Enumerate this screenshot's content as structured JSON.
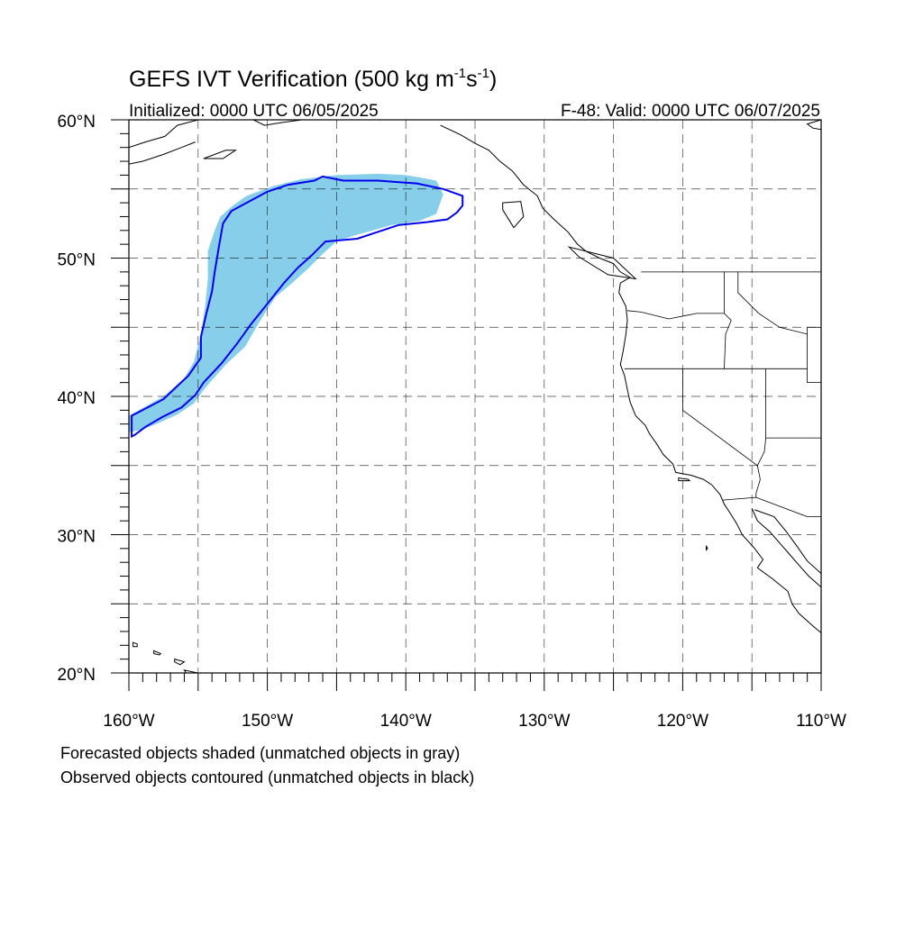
{
  "figure": {
    "title_main": "GEFS IVT Verification (500 kg m",
    "title_exp1": "-1",
    "title_mid": "s",
    "title_exp2": "-1",
    "title_end": ")",
    "subtitle_left": "Initialized: 0000 UTC 06/05/2025",
    "subtitle_right": "F-48: Valid: 0000 UTC 06/07/2025",
    "caption_line1": "Forecasted objects shaded (unmatched objects in gray)",
    "caption_line2": "Observed objects contoured (unmatched objects in black)"
  },
  "axes": {
    "lon_range": [
      -160,
      -110
    ],
    "lat_range": [
      20,
      60
    ],
    "lon_ticks": [
      {
        "value": -160,
        "label": "160°W"
      },
      {
        "value": -150,
        "label": "150°W"
      },
      {
        "value": -140,
        "label": "140°W"
      },
      {
        "value": -130,
        "label": "130°W"
      },
      {
        "value": -120,
        "label": "120°W"
      },
      {
        "value": -110,
        "label": "110°W"
      }
    ],
    "lat_ticks": [
      {
        "value": 60,
        "label": "60°N"
      },
      {
        "value": 50,
        "label": "50°N"
      },
      {
        "value": 40,
        "label": "40°N"
      },
      {
        "value": 30,
        "label": "30°N"
      },
      {
        "value": 20,
        "label": "20°N"
      }
    ],
    "grid_lons": [
      -155,
      -150,
      -145,
      -140,
      -135,
      -130,
      -125,
      -120,
      -115
    ],
    "grid_lats": [
      25,
      30,
      35,
      40,
      45,
      50,
      55
    ],
    "grid": "dashed"
  },
  "colors": {
    "forecast_fill": "#87ceeb",
    "observed_contour": "#0000ee",
    "coastline": "#000000"
  },
  "forecast_object": {
    "label": "forecast-ivt-object",
    "polygon": [
      [
        -160,
        37.4
      ],
      [
        -160,
        38.6
      ],
      [
        -157.5,
        40.0
      ],
      [
        -156.0,
        41.3
      ],
      [
        -155.3,
        42.5
      ],
      [
        -154.8,
        44.5
      ],
      [
        -154.5,
        46.5
      ],
      [
        -154.3,
        48.5
      ],
      [
        -154.3,
        50.5
      ],
      [
        -153.8,
        52.0
      ],
      [
        -153.4,
        53.0
      ],
      [
        -152.5,
        53.8
      ],
      [
        -151.5,
        54.5
      ],
      [
        -149.6,
        55.2
      ],
      [
        -147.6,
        55.7
      ],
      [
        -145.0,
        56.0
      ],
      [
        -142.0,
        56.1
      ],
      [
        -140.0,
        56.0
      ],
      [
        -138.8,
        55.8
      ],
      [
        -137.8,
        55.6
      ],
      [
        -137.3,
        54.6
      ],
      [
        -137.8,
        53.2
      ],
      [
        -139.0,
        52.7
      ],
      [
        -141.0,
        52.4
      ],
      [
        -143.8,
        51.6
      ],
      [
        -145.0,
        51.2
      ],
      [
        -146.0,
        50.3
      ],
      [
        -147.0,
        49.3
      ],
      [
        -148.2,
        48.2
      ],
      [
        -149.4,
        47.2
      ],
      [
        -150.0,
        46.3
      ],
      [
        -150.8,
        45.0
      ],
      [
        -151.6,
        43.6
      ],
      [
        -153.0,
        42.3
      ],
      [
        -154.5,
        40.6
      ],
      [
        -155.3,
        39.5
      ],
      [
        -156.5,
        38.7
      ],
      [
        -157.8,
        38.1
      ],
      [
        -159.0,
        37.6
      ]
    ]
  },
  "observed_object": {
    "label": "observed-ivt-contour",
    "polygon": [
      [
        -159.8,
        37.1
      ],
      [
        -159.8,
        38.6
      ],
      [
        -157.5,
        39.8
      ],
      [
        -155.7,
        41.5
      ],
      [
        -154.8,
        42.8
      ],
      [
        -154.8,
        44.3
      ],
      [
        -154.4,
        46.0
      ],
      [
        -154.0,
        47.6
      ],
      [
        -153.8,
        49.0
      ],
      [
        -153.5,
        50.8
      ],
      [
        -153.2,
        52.5
      ],
      [
        -152.6,
        53.4
      ],
      [
        -151.5,
        54.0
      ],
      [
        -150.0,
        54.8
      ],
      [
        -148.5,
        55.3
      ],
      [
        -146.6,
        55.6
      ],
      [
        -146.0,
        55.9
      ],
      [
        -144.5,
        55.6
      ],
      [
        -142.0,
        55.6
      ],
      [
        -140.6,
        55.5
      ],
      [
        -139.2,
        55.4
      ],
      [
        -137.3,
        55.0
      ],
      [
        -135.9,
        54.5
      ],
      [
        -135.9,
        53.8
      ],
      [
        -136.3,
        53.3
      ],
      [
        -137.0,
        52.8
      ],
      [
        -138.5,
        52.6
      ],
      [
        -140.5,
        52.4
      ],
      [
        -142.0,
        51.9
      ],
      [
        -143.5,
        51.4
      ],
      [
        -145.8,
        51.2
      ],
      [
        -146.8,
        50.2
      ],
      [
        -147.8,
        49.3
      ],
      [
        -148.8,
        48.2
      ],
      [
        -150.0,
        46.7
      ],
      [
        -151.2,
        45.2
      ],
      [
        -152.2,
        43.8
      ],
      [
        -153.3,
        42.4
      ],
      [
        -154.6,
        41.0
      ],
      [
        -155.2,
        40.1
      ],
      [
        -156.2,
        39.2
      ],
      [
        -157.6,
        38.5
      ],
      [
        -158.8,
        37.8
      ],
      [
        -159.6,
        37.2
      ]
    ]
  },
  "coastlines": [
    {
      "name": "west-coast-north-america",
      "points": [
        [
          -137.5,
          59.6
        ],
        [
          -136.0,
          58.9
        ],
        [
          -135.0,
          58.3
        ],
        [
          -134.0,
          57.8
        ],
        [
          -133.2,
          57.0
        ],
        [
          -132.3,
          56.3
        ],
        [
          -131.5,
          55.3
        ],
        [
          -130.5,
          54.5
        ],
        [
          -130.1,
          53.6
        ],
        [
          -129.3,
          52.8
        ],
        [
          -128.3,
          51.9
        ],
        [
          -127.6,
          51.0
        ],
        [
          -127.0,
          50.5
        ],
        [
          -126.0,
          50.0
        ],
        [
          -125.0,
          49.6
        ],
        [
          -124.5,
          49.0
        ],
        [
          -123.8,
          48.6
        ],
        [
          -124.5,
          48.2
        ],
        [
          -124.6,
          47.5
        ],
        [
          -124.1,
          46.5
        ],
        [
          -124.0,
          45.5
        ],
        [
          -124.1,
          44.5
        ],
        [
          -124.3,
          43.3
        ],
        [
          -124.5,
          42.3
        ],
        [
          -124.2,
          41.5
        ],
        [
          -124.0,
          40.5
        ],
        [
          -123.8,
          39.6
        ],
        [
          -123.4,
          38.6
        ],
        [
          -122.7,
          37.9
        ],
        [
          -122.4,
          37.3
        ],
        [
          -121.9,
          36.6
        ],
        [
          -121.4,
          35.8
        ],
        [
          -120.7,
          35.1
        ],
        [
          -120.5,
          34.5
        ],
        [
          -119.4,
          34.3
        ],
        [
          -118.5,
          34.0
        ],
        [
          -117.9,
          33.6
        ],
        [
          -117.3,
          32.9
        ],
        [
          -117.0,
          32.2
        ],
        [
          -116.6,
          31.6
        ],
        [
          -116.1,
          30.8
        ],
        [
          -115.7,
          30.0
        ],
        [
          -114.8,
          29.0
        ],
        [
          -114.2,
          28.2
        ],
        [
          -114.6,
          27.6
        ],
        [
          -113.5,
          26.8
        ],
        [
          -112.4,
          25.9
        ],
        [
          -112.1,
          25.0
        ],
        [
          -111.6,
          24.3
        ],
        [
          -110.6,
          23.4
        ],
        [
          -110.0,
          22.9
        ]
      ]
    },
    {
      "name": "gulf-of-california-coast",
      "points": [
        [
          -115.0,
          31.9
        ],
        [
          -114.6,
          31.0
        ],
        [
          -113.7,
          30.2
        ],
        [
          -113.0,
          29.4
        ],
        [
          -112.3,
          28.6
        ],
        [
          -111.6,
          27.8
        ],
        [
          -110.9,
          27.0
        ],
        [
          -110.0,
          26.2
        ]
      ]
    },
    {
      "name": "mainland-mexico-coast",
      "points": [
        [
          -114.8,
          31.8
        ],
        [
          -113.4,
          31.3
        ],
        [
          -112.5,
          30.2
        ],
        [
          -111.7,
          29.1
        ],
        [
          -111.0,
          28.1
        ],
        [
          -110.0,
          27.2
        ]
      ]
    },
    {
      "name": "alaska-coast",
      "points": [
        [
          -160.0,
          58.0
        ],
        [
          -158.8,
          58.4
        ],
        [
          -157.4,
          58.8
        ],
        [
          -156.5,
          59.6
        ],
        [
          -155.0,
          60.0
        ]
      ]
    },
    {
      "name": "alaska-peninsula",
      "points": [
        [
          -160.0,
          56.8
        ],
        [
          -159.0,
          57.0
        ],
        [
          -157.5,
          57.5
        ],
        [
          -156.2,
          58.0
        ],
        [
          -155.2,
          58.4
        ]
      ]
    },
    {
      "name": "gulf-of-alaska-coast",
      "points": [
        [
          -151.0,
          60.0
        ],
        [
          -150.2,
          59.6
        ],
        [
          -149.0,
          59.8
        ],
        [
          -147.5,
          60.0
        ]
      ]
    },
    {
      "name": "northeast-corner-coast",
      "points": [
        [
          -110.0,
          60.0
        ],
        [
          -111.0,
          59.7
        ],
        [
          -110.6,
          59.4
        ],
        [
          -110.0,
          59.3
        ]
      ]
    }
  ],
  "islands": [
    {
      "name": "kodiak-island",
      "points": [
        [
          -154.6,
          57.2
        ],
        [
          -153.0,
          57.8
        ],
        [
          -152.3,
          57.8
        ],
        [
          -153.2,
          57.2
        ],
        [
          -154.6,
          57.2
        ]
      ]
    },
    {
      "name": "haida-gwaii",
      "points": [
        [
          -133.0,
          54.0
        ],
        [
          -131.7,
          54.1
        ],
        [
          -131.5,
          53.0
        ],
        [
          -132.2,
          52.2
        ],
        [
          -133.0,
          53.5
        ],
        [
          -133.0,
          54.0
        ]
      ]
    },
    {
      "name": "vancouver-island",
      "points": [
        [
          -128.2,
          50.8
        ],
        [
          -125.0,
          50.0
        ],
        [
          -123.4,
          48.5
        ],
        [
          -125.4,
          48.8
        ],
        [
          -127.5,
          50.1
        ],
        [
          -128.2,
          50.8
        ]
      ]
    },
    {
      "name": "hawaii-kauai",
      "points": [
        [
          -159.7,
          22.2
        ],
        [
          -159.4,
          22.1
        ],
        [
          -159.4,
          21.9
        ],
        [
          -159.7,
          21.9
        ],
        [
          -159.7,
          22.2
        ]
      ]
    },
    {
      "name": "hawaii-oahu",
      "points": [
        [
          -158.2,
          21.6
        ],
        [
          -157.7,
          21.4
        ],
        [
          -157.8,
          21.3
        ],
        [
          -158.2,
          21.4
        ],
        [
          -158.2,
          21.6
        ]
      ]
    },
    {
      "name": "hawaii-maui",
      "points": [
        [
          -156.7,
          21.0
        ],
        [
          -156.0,
          20.8
        ],
        [
          -156.3,
          20.6
        ],
        [
          -156.7,
          20.8
        ],
        [
          -156.7,
          21.0
        ]
      ]
    },
    {
      "name": "hawaii-big-island",
      "points": [
        [
          -156.0,
          20.2
        ],
        [
          -155.0,
          20.0
        ],
        [
          -154.8,
          19.5
        ],
        [
          -155.4,
          19.3
        ],
        [
          -156.0,
          20.2
        ]
      ]
    },
    {
      "name": "guadalupe-island",
      "points": [
        [
          -118.3,
          29.2
        ],
        [
          -118.2,
          29.0
        ],
        [
          -118.3,
          28.9
        ],
        [
          -118.3,
          29.2
        ]
      ]
    },
    {
      "name": "channel-islands",
      "points": [
        [
          -120.3,
          34.1
        ],
        [
          -119.6,
          34.0
        ],
        [
          -119.5,
          33.9
        ],
        [
          -120.3,
          33.9
        ],
        [
          -120.3,
          34.1
        ]
      ]
    }
  ],
  "borders": [
    {
      "name": "us-canada-border",
      "points": [
        [
          -123.0,
          49.0
        ],
        [
          -110.0,
          49.0
        ]
      ]
    },
    {
      "name": "washington-oregon-border",
      "points": [
        [
          -124.0,
          46.2
        ],
        [
          -123.0,
          46.1
        ],
        [
          -121.0,
          45.6
        ],
        [
          -119.0,
          46.0
        ],
        [
          -117.0,
          46.0
        ]
      ]
    },
    {
      "name": "washington-idaho-border",
      "points": [
        [
          -117.0,
          49.0
        ],
        [
          -117.0,
          46.0
        ]
      ]
    },
    {
      "name": "oregon-idaho-border",
      "points": [
        [
          -117.0,
          46.0
        ],
        [
          -116.5,
          45.5
        ],
        [
          -116.9,
          44.5
        ],
        [
          -117.0,
          42.0
        ]
      ]
    },
    {
      "name": "oregon-california-border",
      "points": [
        [
          -124.2,
          42.0
        ],
        [
          -117.0,
          42.0
        ]
      ]
    },
    {
      "name": "idaho-nevada-utah-border",
      "points": [
        [
          -117.0,
          42.0
        ],
        [
          -111.0,
          42.0
        ]
      ]
    },
    {
      "name": "idaho-montana-border",
      "points": [
        [
          -116.0,
          49.0
        ],
        [
          -116.0,
          47.5
        ],
        [
          -114.5,
          46.0
        ],
        [
          -113.0,
          45.0
        ],
        [
          -111.0,
          44.5
        ]
      ]
    },
    {
      "name": "california-nevada-border",
      "points": [
        [
          -120.0,
          42.0
        ],
        [
          -120.0,
          39.0
        ],
        [
          -114.6,
          35.0
        ]
      ]
    },
    {
      "name": "nevada-utah-border",
      "points": [
        [
          -114.0,
          42.0
        ],
        [
          -114.0,
          37.0
        ]
      ]
    },
    {
      "name": "arizona-utah-border",
      "points": [
        [
          -114.0,
          37.0
        ],
        [
          -110.0,
          37.0
        ]
      ]
    },
    {
      "name": "arizona-nevada-border",
      "points": [
        [
          -114.0,
          37.0
        ],
        [
          -114.1,
          36.0
        ],
        [
          -114.6,
          35.0
        ]
      ]
    },
    {
      "name": "california-arizona-border",
      "points": [
        [
          -114.6,
          35.0
        ],
        [
          -114.4,
          34.0
        ],
        [
          -114.7,
          33.0
        ],
        [
          -114.7,
          32.7
        ]
      ]
    },
    {
      "name": "us-mexico-border",
      "points": [
        [
          -117.1,
          32.5
        ],
        [
          -114.7,
          32.7
        ],
        [
          -111.0,
          31.3
        ],
        [
          -110.0,
          31.3
        ]
      ]
    },
    {
      "name": "wyoming-border",
      "points": [
        [
          -111.0,
          45.0
        ],
        [
          -111.0,
          41.0
        ],
        [
          -110.0,
          41.0
        ]
      ]
    },
    {
      "name": "montana-wyoming-border",
      "points": [
        [
          -111.0,
          45.0
        ],
        [
          -110.0,
          45.0
        ]
      ]
    }
  ]
}
